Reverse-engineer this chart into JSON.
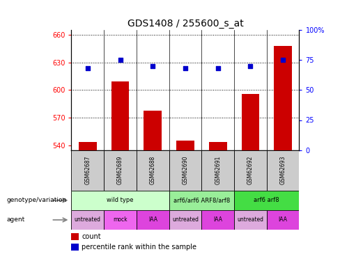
{
  "title": "GDS1408 / 255600_s_at",
  "samples": [
    "GSM62687",
    "GSM62689",
    "GSM62688",
    "GSM62690",
    "GSM62691",
    "GSM62692",
    "GSM62693"
  ],
  "bar_values": [
    544,
    609,
    578,
    545,
    544,
    596,
    648
  ],
  "percentile_values": [
    68,
    75,
    70,
    68,
    68,
    70,
    75
  ],
  "bar_color": "#cc0000",
  "dot_color": "#0000cc",
  "ylim_left": [
    535,
    665
  ],
  "yticks_left": [
    540,
    570,
    600,
    630,
    660
  ],
  "ylim_right": [
    0,
    100
  ],
  "yticks_right": [
    0,
    25,
    50,
    75,
    100
  ],
  "yticklabels_right": [
    "0",
    "25",
    "50",
    "75",
    "100%"
  ],
  "genotype_groups": [
    {
      "label": "wild type",
      "start": 0,
      "end": 3,
      "color": "#ccffcc"
    },
    {
      "label": "arf6/arf6 ARF8/arf8",
      "start": 3,
      "end": 5,
      "color": "#99ee99"
    },
    {
      "label": "arf6 arf8",
      "start": 5,
      "end": 7,
      "color": "#44dd44"
    }
  ],
  "agent_groups": [
    {
      "label": "untreated",
      "start": 0,
      "end": 1,
      "color": "#ddaadd"
    },
    {
      "label": "mock",
      "start": 1,
      "end": 2,
      "color": "#ee66ee"
    },
    {
      "label": "IAA",
      "start": 2,
      "end": 3,
      "color": "#dd44dd"
    },
    {
      "label": "untreated",
      "start": 3,
      "end": 4,
      "color": "#ddaadd"
    },
    {
      "label": "IAA",
      "start": 4,
      "end": 5,
      "color": "#dd44dd"
    },
    {
      "label": "untreated",
      "start": 5,
      "end": 6,
      "color": "#ddaadd"
    },
    {
      "label": "IAA",
      "start": 6,
      "end": 7,
      "color": "#dd44dd"
    }
  ],
  "sample_label_row_color": "#cccccc",
  "title_fontsize": 10,
  "tick_fontsize": 7,
  "bar_width": 0.55
}
